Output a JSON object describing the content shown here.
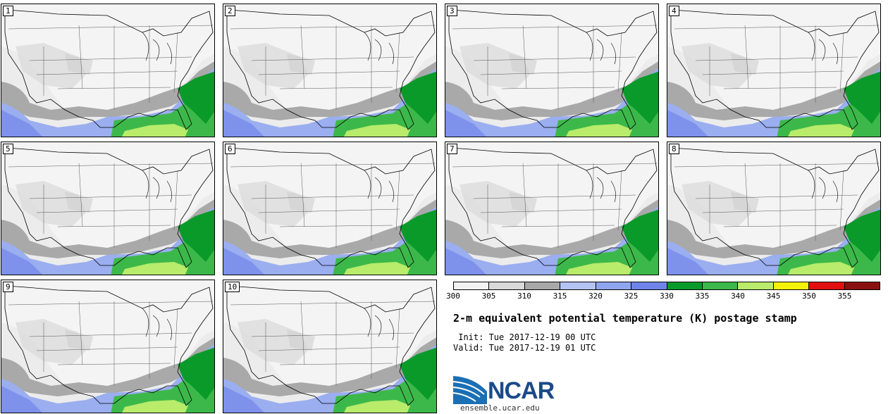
{
  "panels": [
    {
      "label": "1"
    },
    {
      "label": "2"
    },
    {
      "label": "3"
    },
    {
      "label": "4"
    },
    {
      "label": "5"
    },
    {
      "label": "6"
    },
    {
      "label": "7"
    },
    {
      "label": "8"
    },
    {
      "label": "9"
    },
    {
      "label": "10"
    }
  ],
  "colorbar": {
    "ticks": [
      "300",
      "305",
      "310",
      "315",
      "320",
      "325",
      "330",
      "335",
      "340",
      "345",
      "350",
      "355"
    ],
    "colors": [
      "#f2f2f2",
      "#d9d9d9",
      "#a8a8a8",
      "#b3c4f2",
      "#8fa6ee",
      "#6f84ea",
      "#0a9a2a",
      "#3cb84a",
      "#b8ec6a",
      "#f5f20a",
      "#e01010",
      "#8a0f0f"
    ]
  },
  "title": "2-m equivalent potential temperature (K) postage stamp",
  "init": " Init: Tue 2017-12-19 00 UTC",
  "valid": "Valid: Tue 2017-12-19 01 UTC",
  "logo": {
    "text": "NCAR",
    "url": "ensemble.ucar.edu"
  }
}
